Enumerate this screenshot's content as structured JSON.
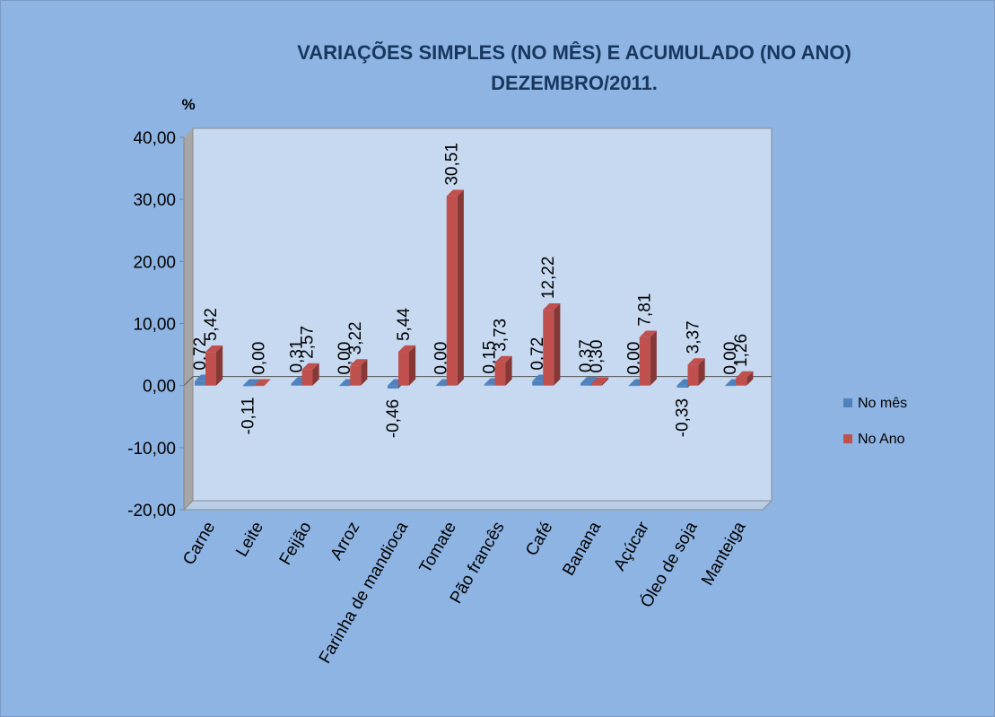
{
  "chart_data": {
    "type": "bar3d",
    "title": "VARIAÇÕES SIMPLES (NO MÊS) E ACUMULADO (NO ANO)",
    "subtitle": "DEZEMBRO/2011.",
    "y_label": "%",
    "categories": [
      "Carne",
      "Leite",
      "Feijão",
      "Arroz",
      "Farinha de mandioca",
      "Tomate",
      "Pão francês",
      "Café",
      "Banana",
      "Açúcar",
      "Óleo de soja",
      "Manteiga"
    ],
    "series": [
      {
        "name": "No mês",
        "color": "#4f81bd",
        "values": [
          0.72,
          -0.11,
          0.31,
          0.0,
          -0.46,
          0.0,
          0.15,
          0.72,
          0.37,
          0.0,
          -0.33,
          0.0
        ],
        "value_labels": [
          "0,72",
          "-0,11",
          "0,31",
          "0,00",
          "-0,46",
          "0,00",
          "0,15",
          "0,72",
          "0,37",
          "0,00",
          "-0,33",
          "0,00"
        ]
      },
      {
        "name": "No Ano",
        "color": "#c0504d",
        "values": [
          5.42,
          0.0,
          2.57,
          3.22,
          5.44,
          30.51,
          3.73,
          12.22,
          0.3,
          7.81,
          3.37,
          1.26
        ],
        "value_labels": [
          "5,42",
          "0,00",
          "2,57",
          "3,22",
          "5,44",
          "30,51",
          "3,73",
          "12,22",
          "0,30",
          "7,81",
          "3,37",
          "1,26"
        ]
      }
    ],
    "ylim": [
      -20,
      40
    ],
    "yticks": [
      {
        "value": -20,
        "label": "-20,00"
      },
      {
        "value": -10,
        "label": "-10,00"
      },
      {
        "value": 0,
        "label": "0,00"
      },
      {
        "value": 10,
        "label": "10,00"
      },
      {
        "value": 20,
        "label": "20,00"
      },
      {
        "value": 30,
        "label": "30,00"
      },
      {
        "value": 40,
        "label": "40,00"
      }
    ],
    "legend": "right"
  }
}
